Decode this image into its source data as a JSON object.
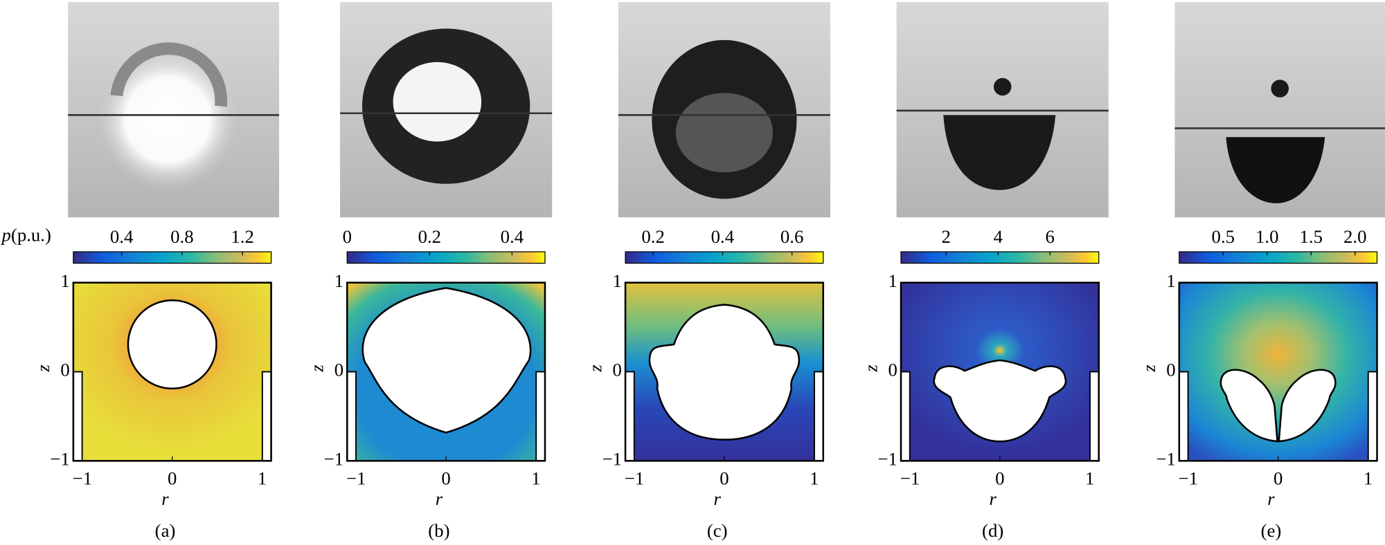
{
  "figure": {
    "pressure_symbol": "p",
    "pressure_unit": "(p.u.)",
    "x_label": "r",
    "y_label": "z",
    "xlim": [
      -1.1,
      1.1
    ],
    "ylim": [
      -1,
      1
    ],
    "xticks": [
      {
        "value": -1,
        "label": "−1"
      },
      0,
      1
    ],
    "yticks": [
      {
        "value": -1,
        "label": "−1"
      },
      0,
      1
    ],
    "panels": [
      {
        "label": "(a)",
        "clim": [
          0.08,
          1.39
        ],
        "cticks": [
          0.4,
          0.8,
          1.2
        ]
      },
      {
        "label": "(b)",
        "clim": [
          0,
          0.48
        ],
        "cticks": [
          0,
          0.2,
          0.4
        ]
      },
      {
        "label": "(c)",
        "clim": [
          0.12,
          0.69
        ],
        "cticks": [
          0.2,
          0.4,
          0.6
        ]
      },
      {
        "label": "(d)",
        "clim": [
          0.26,
          7.88
        ],
        "cticks": [
          2,
          4,
          6
        ]
      },
      {
        "label": "(e)",
        "clim": [
          0,
          2.25
        ],
        "cticks": [
          0.5,
          {
            "value": 1.0,
            "label": "1.0"
          },
          1.5,
          {
            "value": 2.0,
            "label": "2.0"
          }
        ]
      }
    ]
  }
}
